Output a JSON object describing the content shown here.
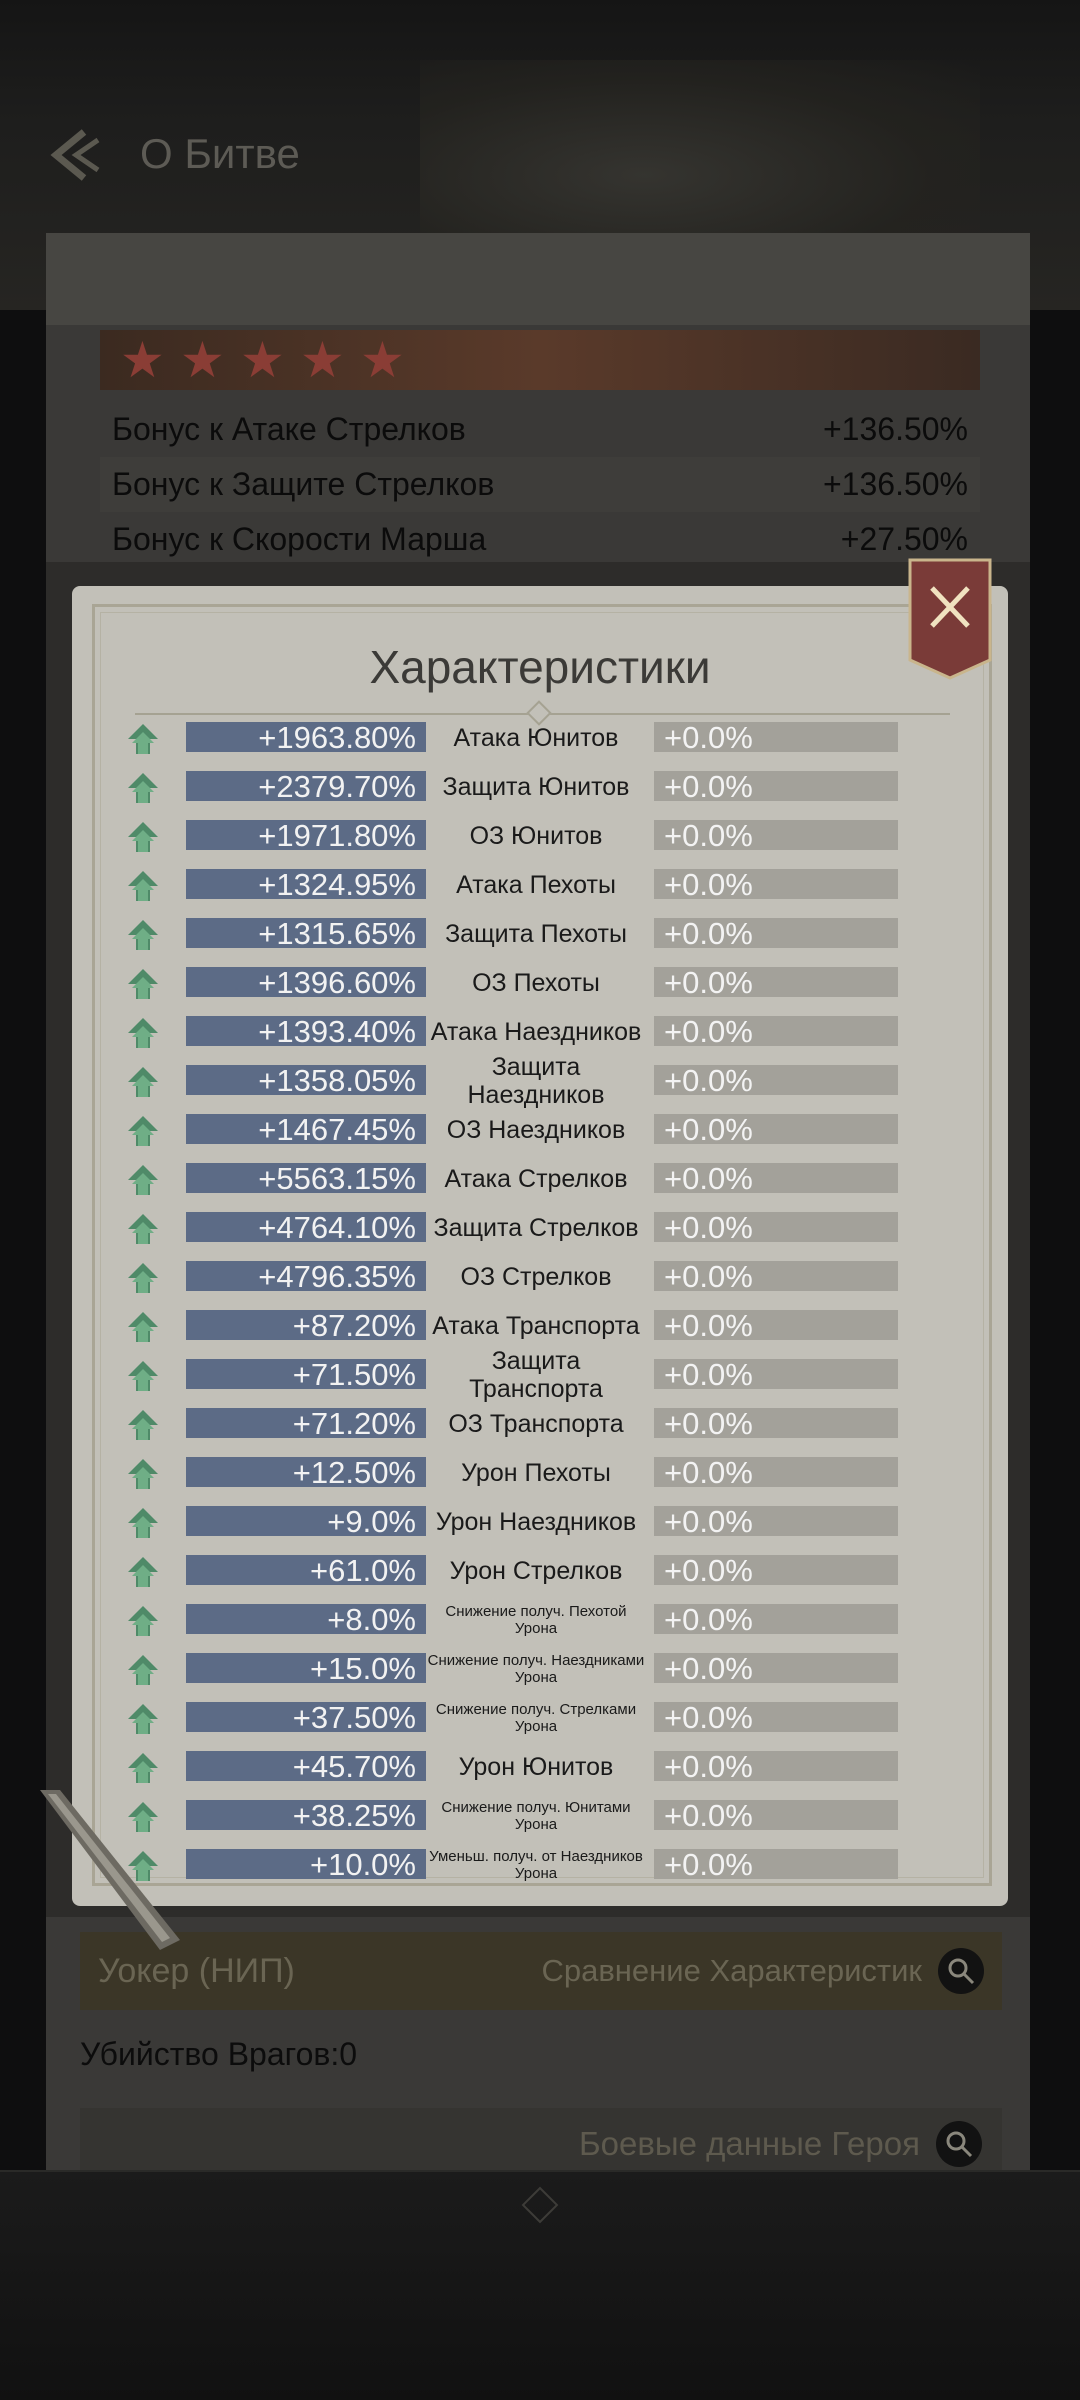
{
  "header": {
    "title": "О Битве"
  },
  "bonuses": [
    {
      "label": "Бонус к Атаке Стрелков",
      "value": "+136.50%"
    },
    {
      "label": "Бонус к Защите Стрелков",
      "value": "+136.50%"
    },
    {
      "label": "Бонус к Скорости Марша",
      "value": "+27.50%"
    }
  ],
  "modal": {
    "title": "Характеристики",
    "stats": [
      {
        "value": "+1963.80%",
        "label": "Атака Юнитов",
        "compare": "+0.0%"
      },
      {
        "value": "+2379.70%",
        "label": "Защита Юнитов",
        "compare": "+0.0%"
      },
      {
        "value": "+1971.80%",
        "label": "ОЗ Юнитов",
        "compare": "+0.0%"
      },
      {
        "value": "+1324.95%",
        "label": "Атака Пехоты",
        "compare": "+0.0%"
      },
      {
        "value": "+1315.65%",
        "label": "Защита Пехоты",
        "compare": "+0.0%"
      },
      {
        "value": "+1396.60%",
        "label": "ОЗ Пехоты",
        "compare": "+0.0%"
      },
      {
        "value": "+1393.40%",
        "label": "Атака Наездников",
        "compare": "+0.0%"
      },
      {
        "value": "+1358.05%",
        "label": "Защита Наездников",
        "compare": "+0.0%"
      },
      {
        "value": "+1467.45%",
        "label": "ОЗ Наездников",
        "compare": "+0.0%"
      },
      {
        "value": "+5563.15%",
        "label": "Атака Стрелков",
        "compare": "+0.0%"
      },
      {
        "value": "+4764.10%",
        "label": "Защита Стрелков",
        "compare": "+0.0%"
      },
      {
        "value": "+4796.35%",
        "label": "ОЗ Стрелков",
        "compare": "+0.0%"
      },
      {
        "value": "+87.20%",
        "label": "Атака Транспорта",
        "compare": "+0.0%"
      },
      {
        "value": "+71.50%",
        "label": "Защита Транспорта",
        "compare": "+0.0%"
      },
      {
        "value": "+71.20%",
        "label": "ОЗ Транспорта",
        "compare": "+0.0%"
      },
      {
        "value": "+12.50%",
        "label": "Урон Пехоты",
        "compare": "+0.0%"
      },
      {
        "value": "+9.0%",
        "label": "Урон Наездников",
        "compare": "+0.0%"
      },
      {
        "value": "+61.0%",
        "label": "Урон Стрелков",
        "compare": "+0.0%"
      },
      {
        "value": "+8.0%",
        "label": "Снижение получ. Пехотой Урона",
        "compare": "+0.0%"
      },
      {
        "value": "+15.0%",
        "label": "Снижение получ. Наездниками Урона",
        "compare": "+0.0%"
      },
      {
        "value": "+37.50%",
        "label": "Снижение получ. Стрелками Урона",
        "compare": "+0.0%"
      },
      {
        "value": "+45.70%",
        "label": "Урон Юнитов",
        "compare": "+0.0%"
      },
      {
        "value": "+38.25%",
        "label": "Снижение получ. Юнитами Урона",
        "compare": "+0.0%"
      },
      {
        "value": "+10.0%",
        "label": "Уменьш. получ. от Наездников Урона",
        "compare": "+0.0%"
      }
    ]
  },
  "npc": {
    "name": "Уокер (НИП)",
    "compare_label": "Сравнение Характеристик"
  },
  "kills": "Убийство Врагов:0",
  "battle_data_label": "Боевые данные Героя"
}
